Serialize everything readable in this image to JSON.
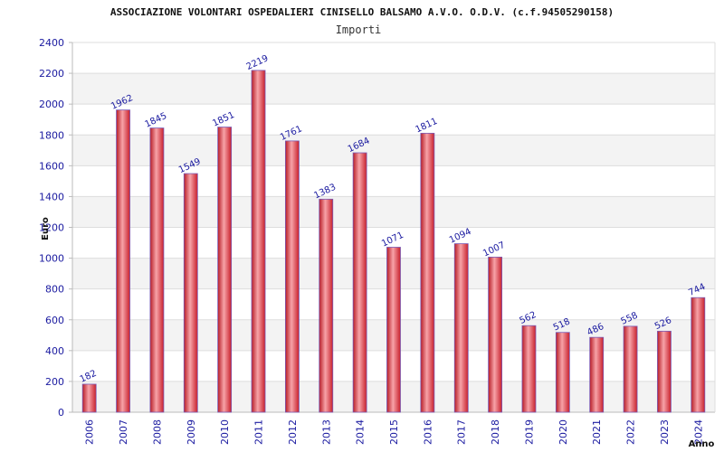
{
  "chart_data": {
    "type": "bar",
    "title": "ASSOCIAZIONE VOLONTARI OSPEDALIERI CINISELLO BALSAMO A.V.O. O.D.V. (c.f.94505290158)",
    "subtitle": "Importi",
    "xlabel": "Anno",
    "ylabel": "Euro",
    "categories": [
      "2006",
      "2007",
      "2008",
      "2009",
      "2010",
      "2011",
      "2012",
      "2013",
      "2014",
      "2015",
      "2016",
      "2017",
      "2018",
      "2019",
      "2020",
      "2021",
      "2022",
      "2023",
      "2024"
    ],
    "values": [
      182,
      1962,
      1845,
      1549,
      1851,
      2219,
      1761,
      1383,
      1684,
      1071,
      1811,
      1094,
      1007,
      562,
      518,
      486,
      558,
      526,
      744
    ],
    "ylim": [
      0,
      2400
    ],
    "yticks": [
      0,
      200,
      400,
      600,
      800,
      1000,
      1200,
      1400,
      1600,
      1800,
      2000,
      2200,
      2400
    ],
    "grid": true,
    "legend": "none",
    "colors": {
      "bar": "#e0303a",
      "bar_light": "#f7a3a8",
      "bar_edge": "#7a5ab5",
      "band": "#f3f3f3",
      "grid": "#dddddd",
      "tick_text": "#1a1aa0"
    }
  }
}
